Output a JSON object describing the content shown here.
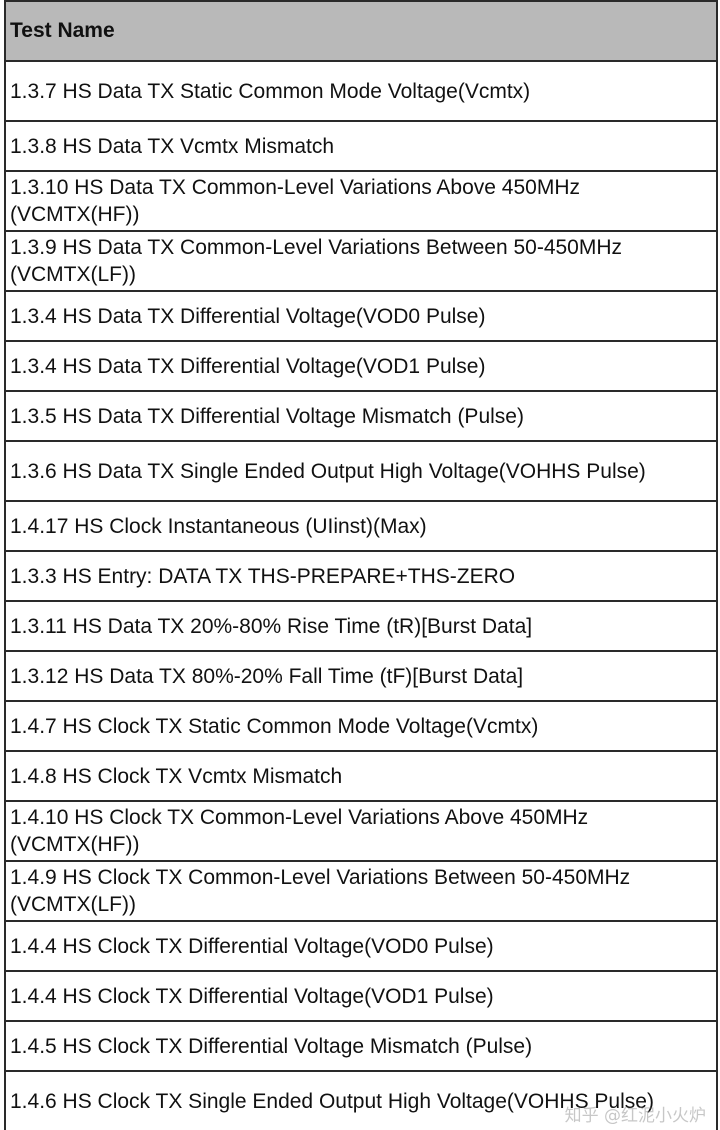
{
  "table": {
    "header": "Test Name",
    "rows": [
      "1.3.7 HS Data TX Static Common Mode Voltage(Vcmtx)",
      "1.3.8 HS Data TX Vcmtx Mismatch",
      "1.3.10 HS Data TX Common-Level Variations Above 450MHz (VCMTX(HF))",
      "1.3.9 HS Data TX Common-Level Variations Between 50-450MHz (VCMTX(LF))",
      "1.3.4 HS Data TX Differential Voltage(VOD0 Pulse)",
      "1.3.4 HS Data TX Differential Voltage(VOD1 Pulse)",
      "1.3.5 HS Data TX Differential Voltage Mismatch (Pulse)",
      "1.3.6 HS Data TX Single Ended Output High Voltage(VOHHS Pulse)",
      "1.4.17 HS Clock Instantaneous (UIinst)(Max)",
      "1.3.3 HS Entry: DATA TX THS-PREPARE+THS-ZERO",
      "1.3.11 HS Data TX 20%-80% Rise Time (tR)[Burst Data]",
      "1.3.12 HS Data TX 80%-20% Fall Time (tF)[Burst Data]",
      "1.4.7 HS Clock TX Static Common Mode Voltage(Vcmtx)",
      "1.4.8 HS Clock TX Vcmtx Mismatch",
      "1.4.10 HS Clock TX Common-Level Variations Above 450MHz (VCMTX(HF))",
      "1.4.9 HS Clock TX Common-Level Variations Between 50-450MHz (VCMTX(LF))",
      "1.4.4 HS Clock TX Differential Voltage(VOD0 Pulse)",
      "1.4.4 HS Clock TX Differential Voltage(VOD1 Pulse)",
      "1.4.5 HS Clock TX Differential Voltage Mismatch (Pulse)",
      "1.4.6 HS Clock TX Single Ended Output High Voltage(VOHHS Pulse)"
    ]
  },
  "watermark": "知乎 @红泥小火炉"
}
